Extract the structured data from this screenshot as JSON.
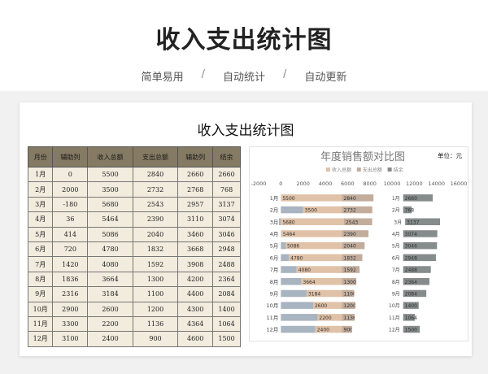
{
  "page": {
    "title": "收入支出统计图",
    "tags": [
      "简单易用",
      "自动统计",
      "自动更新"
    ],
    "separator": "/"
  },
  "card": {
    "title": "收入支出统计图"
  },
  "table": {
    "headers": [
      "月份",
      "辅助列",
      "收入总额",
      "支出总额",
      "辅助列",
      "结余"
    ],
    "rows": [
      [
        "1月",
        "0",
        "5500",
        "2840",
        "2660",
        "2660"
      ],
      [
        "2月",
        "2000",
        "3500",
        "2732",
        "2768",
        "768"
      ],
      [
        "3月",
        "-180",
        "5680",
        "2543",
        "2957",
        "3137"
      ],
      [
        "4月",
        "36",
        "5464",
        "2390",
        "3110",
        "3074"
      ],
      [
        "5月",
        "414",
        "5086",
        "2040",
        "3460",
        "3046"
      ],
      [
        "6月",
        "720",
        "4780",
        "1832",
        "3668",
        "2948"
      ],
      [
        "7月",
        "1420",
        "4080",
        "1592",
        "3908",
        "2488"
      ],
      [
        "8月",
        "1836",
        "3664",
        "1300",
        "4200",
        "2364"
      ],
      [
        "9月",
        "2316",
        "3184",
        "1100",
        "4400",
        "2084"
      ],
      [
        "10月",
        "2900",
        "2600",
        "1200",
        "4300",
        "1400"
      ],
      [
        "11月",
        "3300",
        "2200",
        "1136",
        "4364",
        "1064"
      ],
      [
        "12月",
        "3100",
        "2400",
        "900",
        "4600",
        "1500"
      ]
    ]
  },
  "chart_data": {
    "type": "bar",
    "orientation": "horizontal",
    "stacked": true,
    "title": "年度销售额对比图",
    "unit_label": "单位：元",
    "categories": [
      "1月",
      "2月",
      "3月",
      "4月",
      "5月",
      "6月",
      "7月",
      "8月",
      "9月",
      "10月",
      "11月",
      "12月"
    ],
    "xlim": [
      -2000,
      16000
    ],
    "xticks": [
      -2000,
      0,
      2000,
      4000,
      6000,
      8000,
      10000,
      12000,
      14000,
      16000
    ],
    "xtick_labels": [
      "-2000",
      "0",
      "2000",
      "4000",
      "6000",
      "8000",
      "10000",
      "12000",
      "14000",
      "16000"
    ],
    "legend_position": "top",
    "series": [
      {
        "name": "",
        "color": "#a8b4c0",
        "values": [
          0,
          2000,
          -180,
          36,
          414,
          720,
          1420,
          1836,
          2316,
          2900,
          3300,
          3100
        ],
        "show_labels": false
      },
      {
        "name": "收入总额",
        "color": "#e0c2a8",
        "values": [
          5500,
          3500,
          5680,
          5464,
          5086,
          4780,
          4080,
          3664,
          3184,
          2600,
          2200,
          2400
        ],
        "show_labels": true
      },
      {
        "name": "支出总额",
        "color": "#c2ad9c",
        "values": [
          2840,
          2732,
          2543,
          2390,
          2040,
          1832,
          1592,
          1300,
          1100,
          1200,
          1136,
          900
        ],
        "show_labels": true
      },
      {
        "name": "",
        "color": "#ffffff",
        "values": [
          2660,
          2768,
          2957,
          3110,
          3460,
          3668,
          3908,
          4200,
          4400,
          4300,
          4364,
          4600
        ],
        "show_labels": false
      },
      {
        "name": "",
        "color": "#ebe5d8",
        "values": [
          0,
          0,
          0,
          0,
          0,
          0,
          0,
          0,
          0,
          0,
          0,
          0
        ],
        "show_labels": false,
        "label_values": [
          "1月",
          "2月",
          "3月",
          "4月",
          "5月",
          "6月",
          "7月",
          "8月",
          "9月",
          "10月",
          "11月",
          "12月"
        ]
      },
      {
        "name": "结余",
        "color": "#868b8b",
        "values": [
          2660,
          768,
          3137,
          3074,
          3046,
          2948,
          2488,
          2364,
          2084,
          1400,
          1064,
          1500
        ],
        "show_labels": true
      }
    ],
    "legend": [
      {
        "name": "收入总额",
        "color": "#e0c2a8"
      },
      {
        "name": "支出总额",
        "color": "#c2ad9c"
      },
      {
        "name": "结余",
        "color": "#868b8b"
      }
    ]
  }
}
